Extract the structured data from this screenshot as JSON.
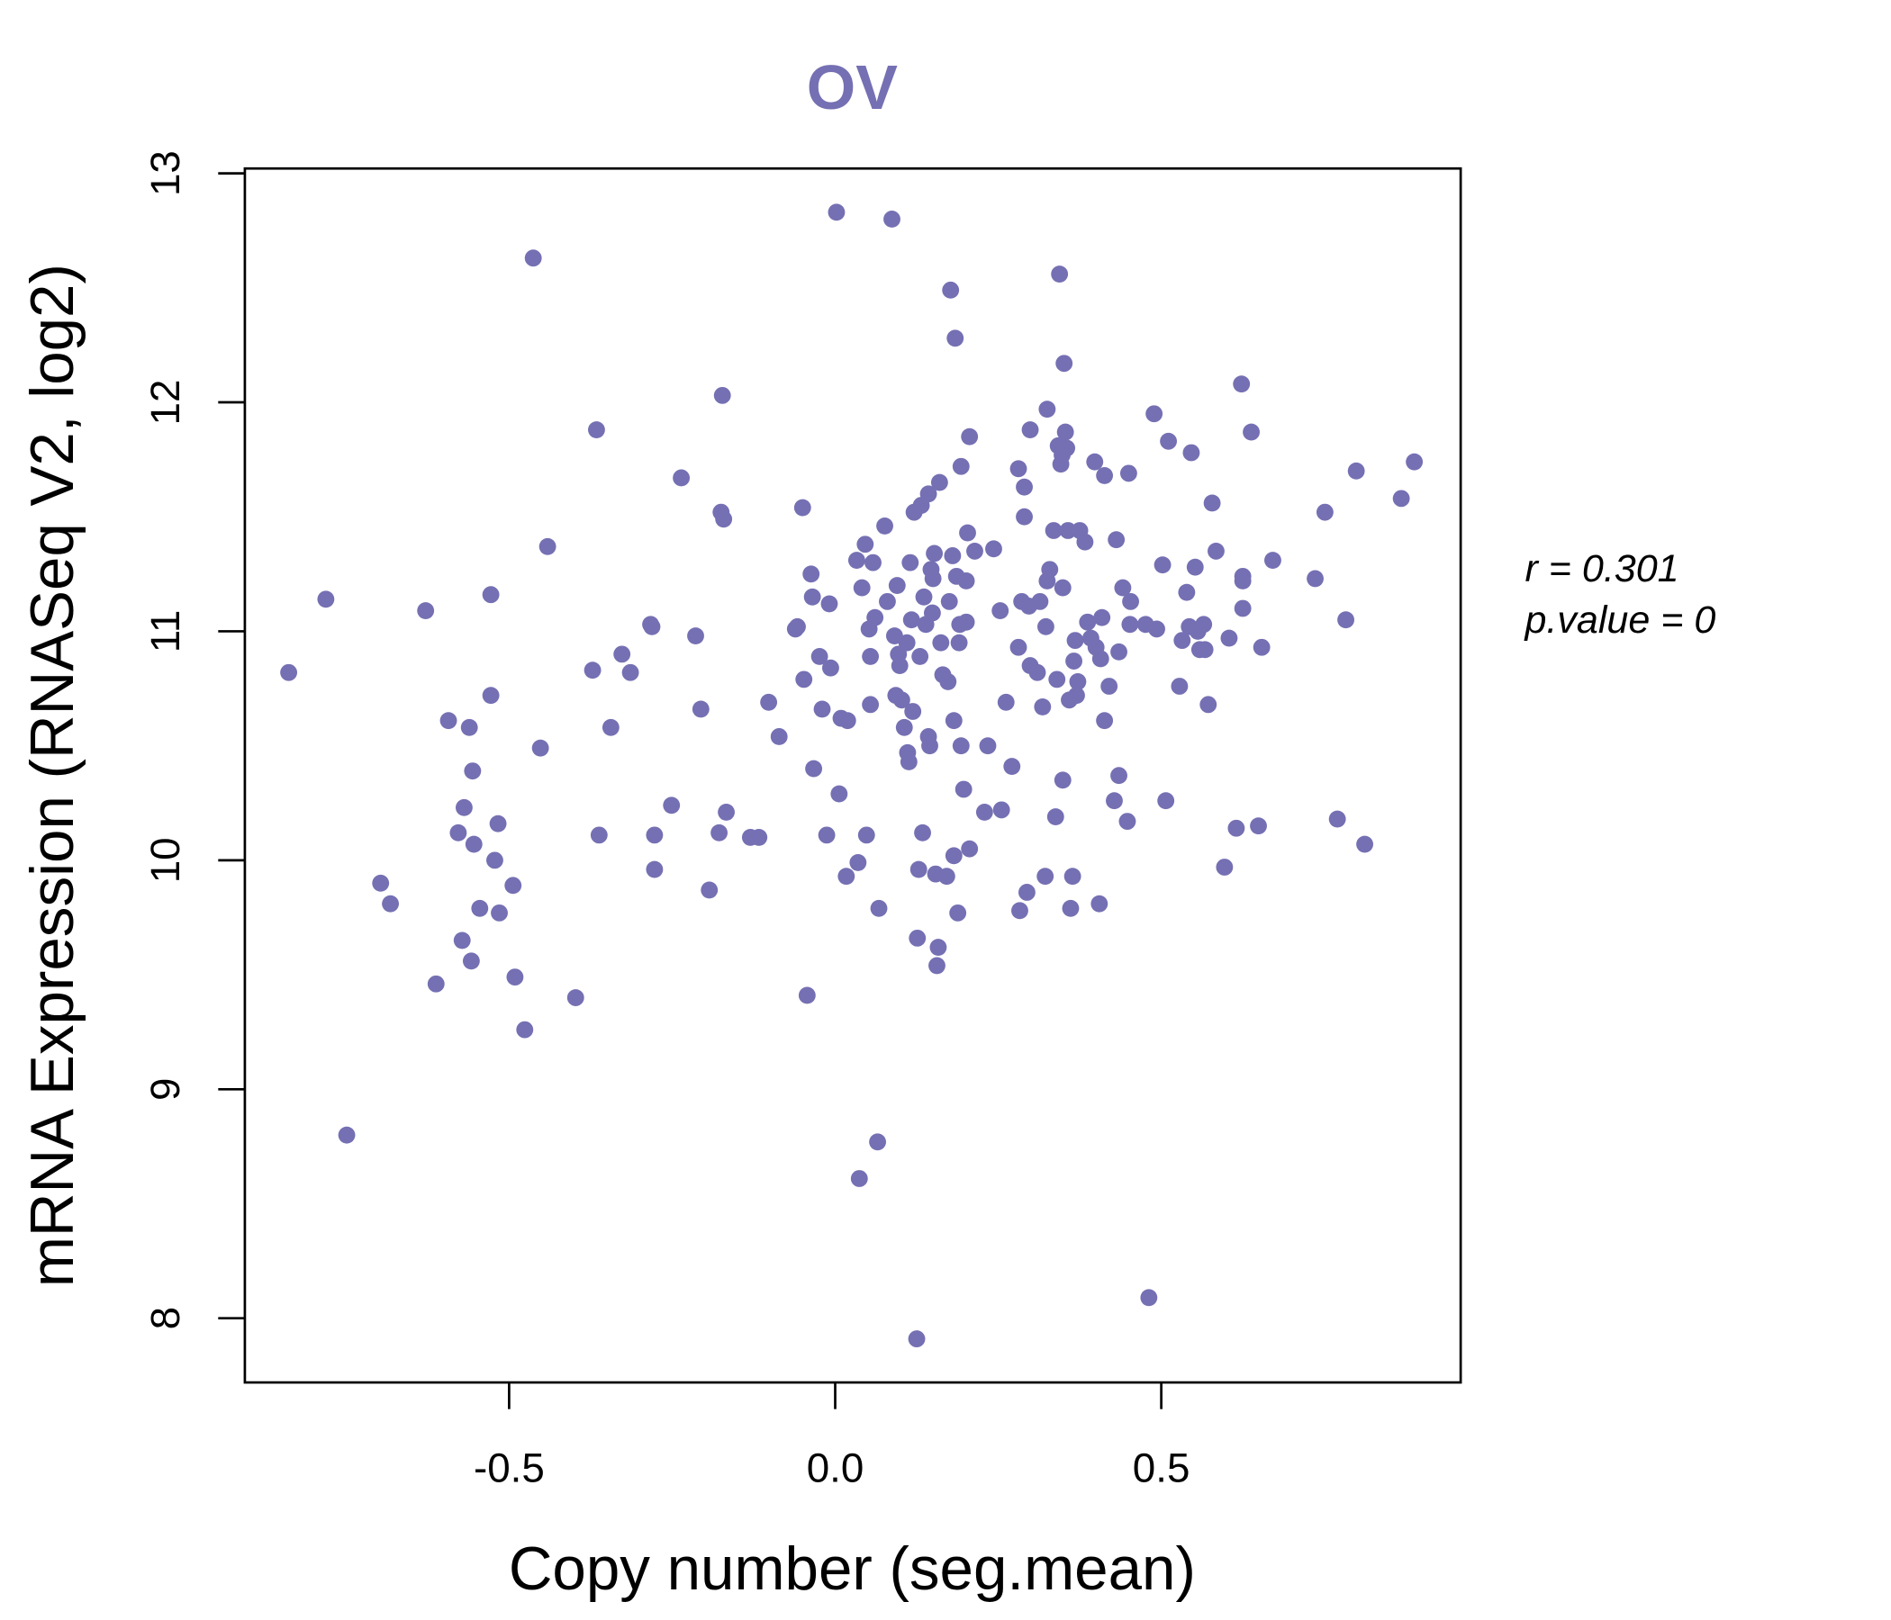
{
  "chart_data": {
    "type": "scatter",
    "title": "OV",
    "xlabel": "Copy number (seg.mean)",
    "ylabel": "mRNA Expression (RNASeq V2, log2)",
    "xticks": [
      "-0.5",
      "0.0",
      "0.5"
    ],
    "xtick_values": [
      -0.5,
      0,
      0.5
    ],
    "yticks": [
      "8",
      "9",
      "10",
      "11",
      "12",
      "13"
    ],
    "ytick_values": [
      8,
      9,
      10,
      11,
      12,
      13
    ],
    "annotation": {
      "r": "r = 0.301",
      "p": "p.value = 0"
    },
    "color": "#7570b3",
    "points": [
      [
        -0.838,
        10.82
      ],
      [
        -0.781,
        11.14
      ],
      [
        -0.749,
        8.8
      ],
      [
        -0.697,
        9.9
      ],
      [
        -0.682,
        9.81
      ],
      [
        -0.628,
        11.09
      ],
      [
        -0.612,
        9.46
      ],
      [
        -0.593,
        10.61
      ],
      [
        -0.578,
        10.12
      ],
      [
        -0.572,
        9.65
      ],
      [
        -0.569,
        10.23
      ],
      [
        -0.561,
        10.58
      ],
      [
        -0.558,
        9.56
      ],
      [
        -0.556,
        10.39
      ],
      [
        -0.554,
        10.07
      ],
      [
        -0.545,
        9.79
      ],
      [
        -0.528,
        11.16
      ],
      [
        -0.528,
        10.72
      ],
      [
        -0.522,
        10.0
      ],
      [
        -0.517,
        10.16
      ],
      [
        -0.515,
        9.77
      ],
      [
        -0.494,
        9.89
      ],
      [
        -0.491,
        9.49
      ],
      [
        -0.476,
        9.26
      ],
      [
        -0.463,
        12.63
      ],
      [
        -0.452,
        10.49
      ],
      [
        -0.441,
        11.37
      ],
      [
        -0.398,
        9.4
      ],
      [
        -0.372,
        10.83
      ],
      [
        -0.366,
        11.88
      ],
      [
        -0.362,
        10.11
      ],
      [
        -0.344,
        10.58
      ],
      [
        -0.327,
        10.9
      ],
      [
        -0.314,
        10.82
      ],
      [
        -0.283,
        11.03
      ],
      [
        -0.281,
        11.02
      ],
      [
        -0.277,
        10.11
      ],
      [
        -0.277,
        9.96
      ],
      [
        -0.251,
        10.24
      ],
      [
        -0.236,
        11.67
      ],
      [
        -0.214,
        10.98
      ],
      [
        -0.206,
        10.66
      ],
      [
        -0.193,
        9.87
      ],
      [
        -0.178,
        10.12
      ],
      [
        -0.173,
        12.03
      ],
      [
        -0.175,
        11.52
      ],
      [
        -0.171,
        11.49
      ],
      [
        -0.167,
        10.21
      ],
      [
        -0.13,
        10.1
      ],
      [
        -0.117,
        10.1
      ],
      [
        -0.102,
        10.69
      ],
      [
        -0.086,
        10.54
      ],
      [
        -0.061,
        11.01
      ],
      [
        -0.058,
        11.02
      ],
      [
        -0.05,
        11.54
      ],
      [
        -0.048,
        10.79
      ],
      [
        -0.043,
        9.41
      ],
      [
        -0.037,
        11.25
      ],
      [
        -0.035,
        11.15
      ],
      [
        -0.033,
        10.4
      ],
      [
        -0.024,
        10.89
      ],
      [
        -0.02,
        10.66
      ],
      [
        -0.013,
        10.11
      ],
      [
        -0.009,
        11.12
      ],
      [
        -0.007,
        10.84
      ],
      [
        0.002,
        12.83
      ],
      [
        0.006,
        10.29
      ],
      [
        0.009,
        10.62
      ],
      [
        0.019,
        10.61
      ],
      [
        0.017,
        9.93
      ],
      [
        0.033,
        11.31
      ],
      [
        0.035,
        9.99
      ],
      [
        0.037,
        8.61
      ],
      [
        0.041,
        11.19
      ],
      [
        0.046,
        11.38
      ],
      [
        0.048,
        10.11
      ],
      [
        0.052,
        11.01
      ],
      [
        0.054,
        10.89
      ],
      [
        0.054,
        10.68
      ],
      [
        0.058,
        11.3
      ],
      [
        0.061,
        11.06
      ],
      [
        0.065,
        8.77
      ],
      [
        0.067,
        9.79
      ],
      [
        0.076,
        11.46
      ],
      [
        0.08,
        11.13
      ],
      [
        0.087,
        12.8
      ],
      [
        0.091,
        10.98
      ],
      [
        0.093,
        10.72
      ],
      [
        0.095,
        11.2
      ],
      [
        0.097,
        10.9
      ],
      [
        0.099,
        10.85
      ],
      [
        0.102,
        10.7
      ],
      [
        0.106,
        10.58
      ],
      [
        0.11,
        10.95
      ],
      [
        0.111,
        10.47
      ],
      [
        0.113,
        10.43
      ],
      [
        0.115,
        11.3
      ],
      [
        0.117,
        11.05
      ],
      [
        0.119,
        10.65
      ],
      [
        0.121,
        11.52
      ],
      [
        0.125,
        7.91
      ],
      [
        0.126,
        9.66
      ],
      [
        0.128,
        9.96
      ],
      [
        0.13,
        10.89
      ],
      [
        0.132,
        11.55
      ],
      [
        0.134,
        10.12
      ],
      [
        0.136,
        11.15
      ],
      [
        0.139,
        11.03
      ],
      [
        0.143,
        10.54
      ],
      [
        0.143,
        11.6
      ],
      [
        0.145,
        10.5
      ],
      [
        0.147,
        11.27
      ],
      [
        0.149,
        11.08
      ],
      [
        0.15,
        11.23
      ],
      [
        0.152,
        11.34
      ],
      [
        0.154,
        9.94
      ],
      [
        0.156,
        9.54
      ],
      [
        0.158,
        9.62
      ],
      [
        0.16,
        11.65
      ],
      [
        0.162,
        10.95
      ],
      [
        0.165,
        10.81
      ],
      [
        0.171,
        9.93
      ],
      [
        0.173,
        10.78
      ],
      [
        0.175,
        11.13
      ],
      [
        0.177,
        12.49
      ],
      [
        0.18,
        11.33
      ],
      [
        0.182,
        10.61
      ],
      [
        0.182,
        10.02
      ],
      [
        0.184,
        12.28
      ],
      [
        0.186,
        11.24
      ],
      [
        0.188,
        9.77
      ],
      [
        0.19,
        10.95
      ],
      [
        0.191,
        11.03
      ],
      [
        0.193,
        11.72
      ],
      [
        0.193,
        10.5
      ],
      [
        0.197,
        10.31
      ],
      [
        0.201,
        11.22
      ],
      [
        0.201,
        11.04
      ],
      [
        0.203,
        11.43
      ],
      [
        0.206,
        11.85
      ],
      [
        0.206,
        10.05
      ],
      [
        0.214,
        11.35
      ],
      [
        0.229,
        10.21
      ],
      [
        0.234,
        10.5
      ],
      [
        0.243,
        11.36
      ],
      [
        0.253,
        11.09
      ],
      [
        0.255,
        10.22
      ],
      [
        0.262,
        10.69
      ],
      [
        0.271,
        10.41
      ],
      [
        0.281,
        11.71
      ],
      [
        0.281,
        10.93
      ],
      [
        0.283,
        9.78
      ],
      [
        0.286,
        11.13
      ],
      [
        0.29,
        11.63
      ],
      [
        0.29,
        11.5
      ],
      [
        0.294,
        9.86
      ],
      [
        0.297,
        11.11
      ],
      [
        0.299,
        11.88
      ],
      [
        0.299,
        10.85
      ],
      [
        0.31,
        10.82
      ],
      [
        0.314,
        11.13
      ],
      [
        0.318,
        10.67
      ],
      [
        0.322,
        9.93
      ],
      [
        0.323,
        11.02
      ],
      [
        0.325,
        11.97
      ],
      [
        0.325,
        11.22
      ],
      [
        0.329,
        11.27
      ],
      [
        0.335,
        11.44
      ],
      [
        0.338,
        10.19
      ],
      [
        0.34,
        10.79
      ],
      [
        0.342,
        11.81
      ],
      [
        0.344,
        12.56
      ],
      [
        0.346,
        11.73
      ],
      [
        0.348,
        11.77
      ],
      [
        0.349,
        10.35
      ],
      [
        0.349,
        11.19
      ],
      [
        0.351,
        12.17
      ],
      [
        0.353,
        11.87
      ],
      [
        0.355,
        11.8
      ],
      [
        0.357,
        11.44
      ],
      [
        0.359,
        10.7
      ],
      [
        0.361,
        9.79
      ],
      [
        0.364,
        9.93
      ],
      [
        0.366,
        10.87
      ],
      [
        0.368,
        10.96
      ],
      [
        0.37,
        10.72
      ],
      [
        0.372,
        10.78
      ],
      [
        0.375,
        11.44
      ],
      [
        0.383,
        11.39
      ],
      [
        0.387,
        11.04
      ],
      [
        0.392,
        10.97
      ],
      [
        0.398,
        11.74
      ],
      [
        0.4,
        10.93
      ],
      [
        0.405,
        9.81
      ],
      [
        0.407,
        10.88
      ],
      [
        0.409,
        11.06
      ],
      [
        0.413,
        11.68
      ],
      [
        0.413,
        10.61
      ],
      [
        0.42,
        10.76
      ],
      [
        0.428,
        10.26
      ],
      [
        0.431,
        11.4
      ],
      [
        0.435,
        10.91
      ],
      [
        0.435,
        10.37
      ],
      [
        0.441,
        11.19
      ],
      [
        0.448,
        10.17
      ],
      [
        0.45,
        11.69
      ],
      [
        0.452,
        11.03
      ],
      [
        0.453,
        11.13
      ],
      [
        0.476,
        11.03
      ],
      [
        0.481,
        8.09
      ],
      [
        0.489,
        11.95
      ],
      [
        0.493,
        11.01
      ],
      [
        0.502,
        11.29
      ],
      [
        0.507,
        10.26
      ],
      [
        0.511,
        11.83
      ],
      [
        0.528,
        10.76
      ],
      [
        0.532,
        10.96
      ],
      [
        0.539,
        11.17
      ],
      [
        0.543,
        11.02
      ],
      [
        0.546,
        11.78
      ],
      [
        0.552,
        11.28
      ],
      [
        0.556,
        11.0
      ],
      [
        0.559,
        10.92
      ],
      [
        0.565,
        11.03
      ],
      [
        0.567,
        10.92
      ],
      [
        0.572,
        10.68
      ],
      [
        0.578,
        11.56
      ],
      [
        0.584,
        11.35
      ],
      [
        0.597,
        9.97
      ],
      [
        0.604,
        10.97
      ],
      [
        0.615,
        10.14
      ],
      [
        0.623,
        12.08
      ],
      [
        0.625,
        11.24
      ],
      [
        0.625,
        11.22
      ],
      [
        0.625,
        11.1
      ],
      [
        0.638,
        11.87
      ],
      [
        0.649,
        10.15
      ],
      [
        0.654,
        10.93
      ],
      [
        0.671,
        11.31
      ],
      [
        0.736,
        11.23
      ],
      [
        0.751,
        11.52
      ],
      [
        0.77,
        10.18
      ],
      [
        0.783,
        11.05
      ],
      [
        0.799,
        11.7
      ],
      [
        0.812,
        10.07
      ],
      [
        0.868,
        11.58
      ],
      [
        0.888,
        11.74
      ]
    ]
  }
}
